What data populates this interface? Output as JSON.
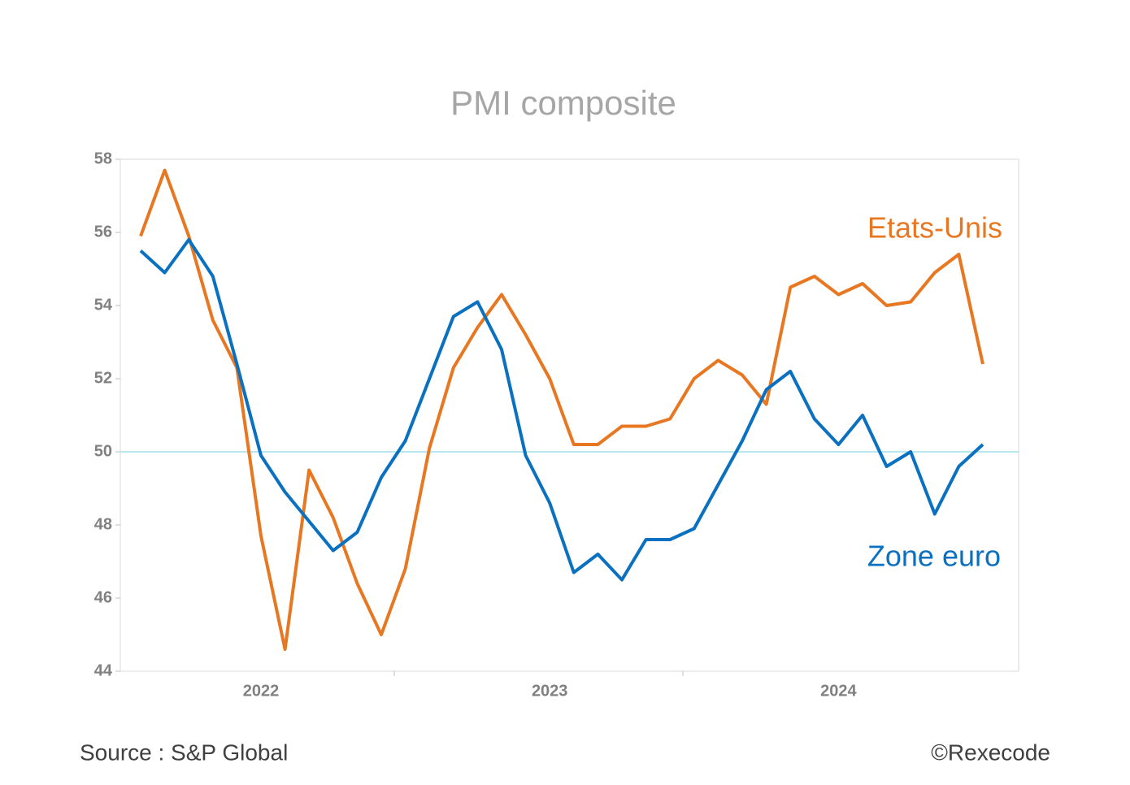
{
  "chart_data": {
    "type": "line",
    "title": "PMI composite",
    "source": "Source : S&P Global",
    "copyright": "©Rexecode",
    "categories": [
      null,
      null,
      null,
      null,
      null,
      "2022",
      null,
      null,
      null,
      null,
      null,
      null,
      null,
      null,
      null,
      null,
      null,
      "2023",
      null,
      null,
      null,
      null,
      null,
      null,
      null,
      null,
      null,
      null,
      null,
      "2024",
      null,
      null,
      null,
      null,
      null,
      null
    ],
    "series": [
      {
        "name": "Etats-Unis",
        "color": "#e87722",
        "values": [
          55.9,
          57.7,
          55.9,
          53.6,
          52.3,
          47.7,
          44.6,
          49.5,
          48.2,
          46.4,
          45.0,
          46.8,
          50.1,
          52.3,
          53.4,
          54.3,
          53.2,
          52.0,
          50.2,
          50.2,
          50.7,
          50.7,
          50.9,
          52.0,
          52.5,
          52.1,
          51.3,
          54.5,
          54.8,
          54.3,
          54.6,
          54.0,
          54.1,
          54.9,
          55.4,
          52.4
        ]
      },
      {
        "name": "Zone euro",
        "color": "#0a70c0",
        "values": [
          55.5,
          54.9,
          55.8,
          54.8,
          52.4,
          49.9,
          48.9,
          48.1,
          47.3,
          47.8,
          49.3,
          50.3,
          52.0,
          53.7,
          54.1,
          52.8,
          49.9,
          48.6,
          46.7,
          47.2,
          46.5,
          47.6,
          47.6,
          47.9,
          49.1,
          50.3,
          51.7,
          52.2,
          50.9,
          50.2,
          51.0,
          49.6,
          50.0,
          48.3,
          49.6,
          50.2
        ]
      }
    ],
    "ylim": [
      44,
      58
    ],
    "yticks": [
      44,
      46,
      48,
      50,
      52,
      54,
      56,
      58
    ],
    "reference_line": 50,
    "reference_color": "#9fe0ea"
  }
}
